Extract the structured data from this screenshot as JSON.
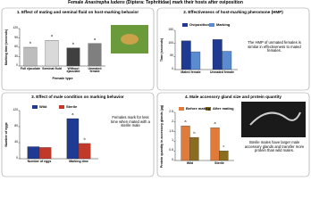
{
  "header": {
    "title_prefix": "Female",
    "species": "Anastrepha ludens",
    "title_rest": "(Diptera: Tephritidae) mark their hosts after oviposition"
  },
  "chart_data": [
    {
      "type": "bar",
      "title": "1. Effect of mating and seminal fluid on host-marking behavior",
      "x_label": "Female type",
      "y_label": "Marking time (seconds)",
      "categories": [
        "Full ejaculate",
        "Seminal fluid",
        "Without ejaculate",
        "Unmated female"
      ],
      "values": [
        60,
        82,
        58,
        72
      ],
      "colors": [
        "#bdbdbd",
        "#d9d9d9",
        "#404040",
        "#7f7f7f"
      ],
      "letters": [
        "b",
        "a",
        "b",
        "a"
      ],
      "ylim": [
        0,
        120
      ],
      "yticks": [
        0,
        30,
        60,
        90,
        120
      ]
    },
    {
      "type": "bar",
      "title": "2. Effectiveness of host-marking pheromone (HMP)",
      "y_label": "Time (seconds)",
      "note": "The HMP of unmated females is similar in effectiveness to mated females.",
      "categories": [
        "Mated female",
        "Unmated female"
      ],
      "series": [
        {
          "name": "Oviposition",
          "color": "#1f3a93",
          "values": [
            110,
            115
          ]
        },
        {
          "name": "Marking",
          "color": "#5b8bd0",
          "values": [
            68,
            70
          ]
        }
      ],
      "ylim": [
        0,
        150
      ],
      "yticks": [
        0,
        50,
        100,
        150
      ]
    },
    {
      "type": "bar",
      "title": "3. Effect of male condition on marking behavior",
      "y_label": "Number of eggs",
      "note": "Females mark for less time when mated with a sterile male",
      "categories": [
        "Number of eggs",
        "Marking time"
      ],
      "series": [
        {
          "name": "Wild",
          "color": "#1f3a93",
          "values": [
            30,
            100
          ],
          "letters": [
            null,
            "a"
          ]
        },
        {
          "name": "Sterile",
          "color": "#c0392b",
          "values": [
            28,
            38
          ],
          "letters": [
            null,
            "b"
          ]
        }
      ],
      "ylim": [
        0,
        120
      ],
      "yticks": [
        0,
        40,
        80,
        120
      ]
    },
    {
      "type": "bar",
      "title": "4. Male accessory gland size and protein quantity",
      "y_label": "Protein quantity in accessory glands (µg)",
      "note": "Sterile males have larger male accessory glands and transfer more protein than wild males.",
      "categories": [
        "Wild",
        "Sterile"
      ],
      "series": [
        {
          "name": "Before mating",
          "color": "#e07b39",
          "values": [
            1.8,
            1.7
          ],
          "letters": [
            "a",
            "a"
          ]
        },
        {
          "name": "After mating",
          "color": "#8a6d1f",
          "values": [
            1.2,
            0.5
          ],
          "letters": [
            "b",
            "c"
          ]
        }
      ],
      "ylim": [
        0,
        2.5
      ],
      "yticks": [
        0,
        0.5,
        1,
        1.5,
        2,
        2.5
      ]
    }
  ]
}
